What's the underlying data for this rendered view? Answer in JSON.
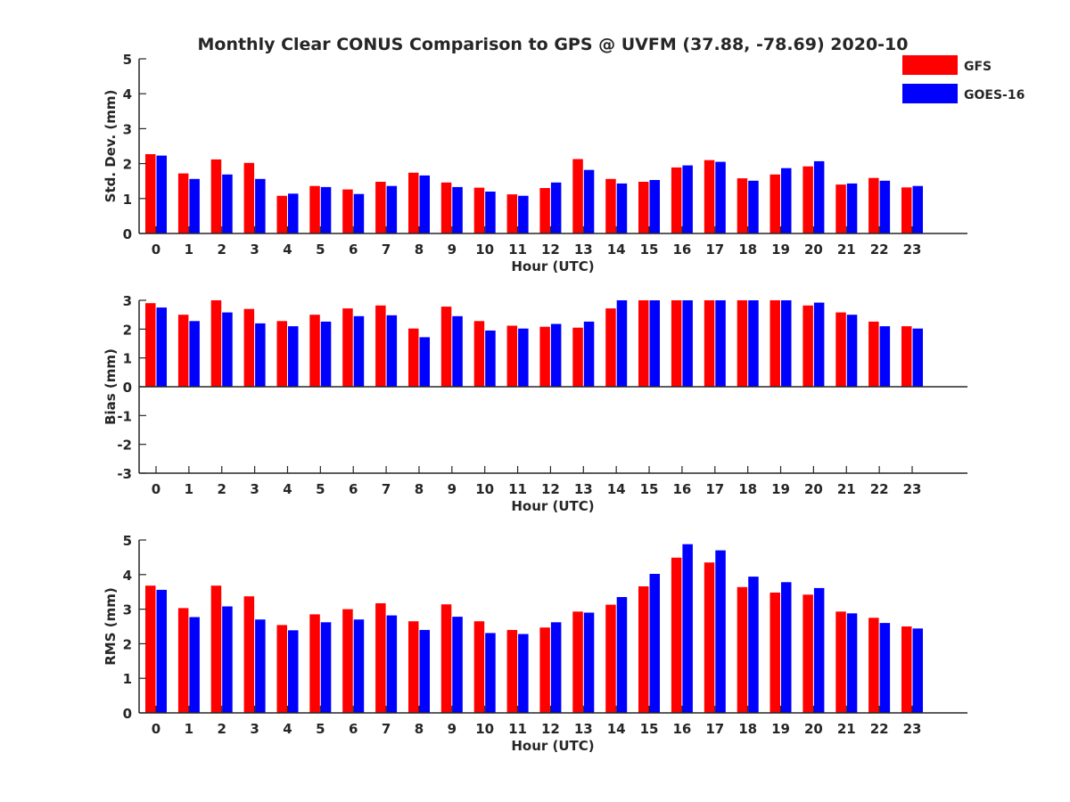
{
  "title": "Monthly Clear CONUS Comparison to GPS @ UVFM (37.88, -78.69) 2020-10",
  "colors": {
    "GFS": "#ff0000",
    "GOES-16": "#0000ff",
    "axis": "#262626"
  },
  "legend": {
    "placement": "top-right",
    "items": [
      "GFS",
      "GOES-16"
    ]
  },
  "chart_data": [
    {
      "type": "bar",
      "xlabel": "Hour (UTC)",
      "ylabel": "Std. Dev. (mm)",
      "ylim": [
        0,
        5
      ],
      "yticks": [
        0,
        1,
        2,
        3,
        4,
        5
      ],
      "categories": [
        "0",
        "1",
        "2",
        "3",
        "4",
        "5",
        "6",
        "7",
        "8",
        "9",
        "10",
        "11",
        "12",
        "13",
        "14",
        "15",
        "16",
        "17",
        "18",
        "19",
        "20",
        "21",
        "22",
        "23"
      ],
      "series": [
        {
          "name": "GFS",
          "values": [
            2.27,
            1.72,
            2.12,
            2.02,
            1.08,
            1.36,
            1.26,
            1.48,
            1.74,
            1.46,
            1.31,
            1.12,
            1.3,
            2.13,
            1.56,
            1.48,
            1.89,
            2.1,
            1.58,
            1.69,
            1.92,
            1.4,
            1.59,
            1.32
          ]
        },
        {
          "name": "GOES-16",
          "values": [
            2.23,
            1.56,
            1.69,
            1.56,
            1.14,
            1.33,
            1.13,
            1.36,
            1.66,
            1.33,
            1.2,
            1.08,
            1.46,
            1.82,
            1.43,
            1.53,
            1.95,
            2.05,
            1.51,
            1.87,
            2.07,
            1.43,
            1.51,
            1.36
          ]
        }
      ]
    },
    {
      "type": "bar",
      "xlabel": "Hour (UTC)",
      "ylabel": "Bias (mm)",
      "ylim": [
        -3,
        3
      ],
      "yticks": [
        -3,
        -2,
        -1,
        0,
        1,
        2,
        3
      ],
      "categories": [
        "0",
        "1",
        "2",
        "3",
        "4",
        "5",
        "6",
        "7",
        "8",
        "9",
        "10",
        "11",
        "12",
        "13",
        "14",
        "15",
        "16",
        "17",
        "18",
        "19",
        "20",
        "21",
        "22",
        "23"
      ],
      "series": [
        {
          "name": "GFS",
          "values": [
            2.9,
            2.5,
            3.0,
            2.7,
            2.28,
            2.5,
            2.72,
            2.82,
            2.02,
            2.78,
            2.28,
            2.12,
            2.08,
            2.05,
            2.72,
            3.0,
            3.0,
            3.0,
            3.0,
            3.0,
            2.82,
            2.58,
            2.26,
            2.1
          ]
        },
        {
          "name": "GOES-16",
          "values": [
            2.75,
            2.28,
            2.58,
            2.2,
            2.1,
            2.26,
            2.45,
            2.48,
            1.72,
            2.45,
            1.95,
            2.02,
            2.18,
            2.26,
            3.0,
            3.0,
            3.0,
            3.0,
            3.0,
            3.0,
            2.92,
            2.5,
            2.1,
            2.02
          ]
        }
      ]
    },
    {
      "type": "bar",
      "xlabel": "Hour (UTC)",
      "ylabel": "RMS (mm)",
      "ylim": [
        0,
        5
      ],
      "yticks": [
        0,
        1,
        2,
        3,
        4,
        5
      ],
      "categories": [
        "0",
        "1",
        "2",
        "3",
        "4",
        "5",
        "6",
        "7",
        "8",
        "9",
        "10",
        "11",
        "12",
        "13",
        "14",
        "15",
        "16",
        "17",
        "18",
        "19",
        "20",
        "21",
        "22",
        "23"
      ],
      "series": [
        {
          "name": "GFS",
          "values": [
            3.68,
            3.03,
            3.68,
            3.37,
            2.54,
            2.85,
            3.0,
            3.17,
            2.65,
            3.14,
            2.65,
            2.4,
            2.47,
            2.93,
            3.13,
            3.66,
            4.49,
            4.35,
            3.64,
            3.48,
            3.42,
            2.93,
            2.75,
            2.5
          ]
        },
        {
          "name": "GOES-16",
          "values": [
            3.56,
            2.77,
            3.08,
            2.7,
            2.39,
            2.62,
            2.7,
            2.82,
            2.4,
            2.78,
            2.31,
            2.28,
            2.62,
            2.9,
            3.35,
            4.02,
            4.88,
            4.7,
            3.94,
            3.78,
            3.61,
            2.88,
            2.6,
            2.44
          ]
        }
      ]
    }
  ]
}
